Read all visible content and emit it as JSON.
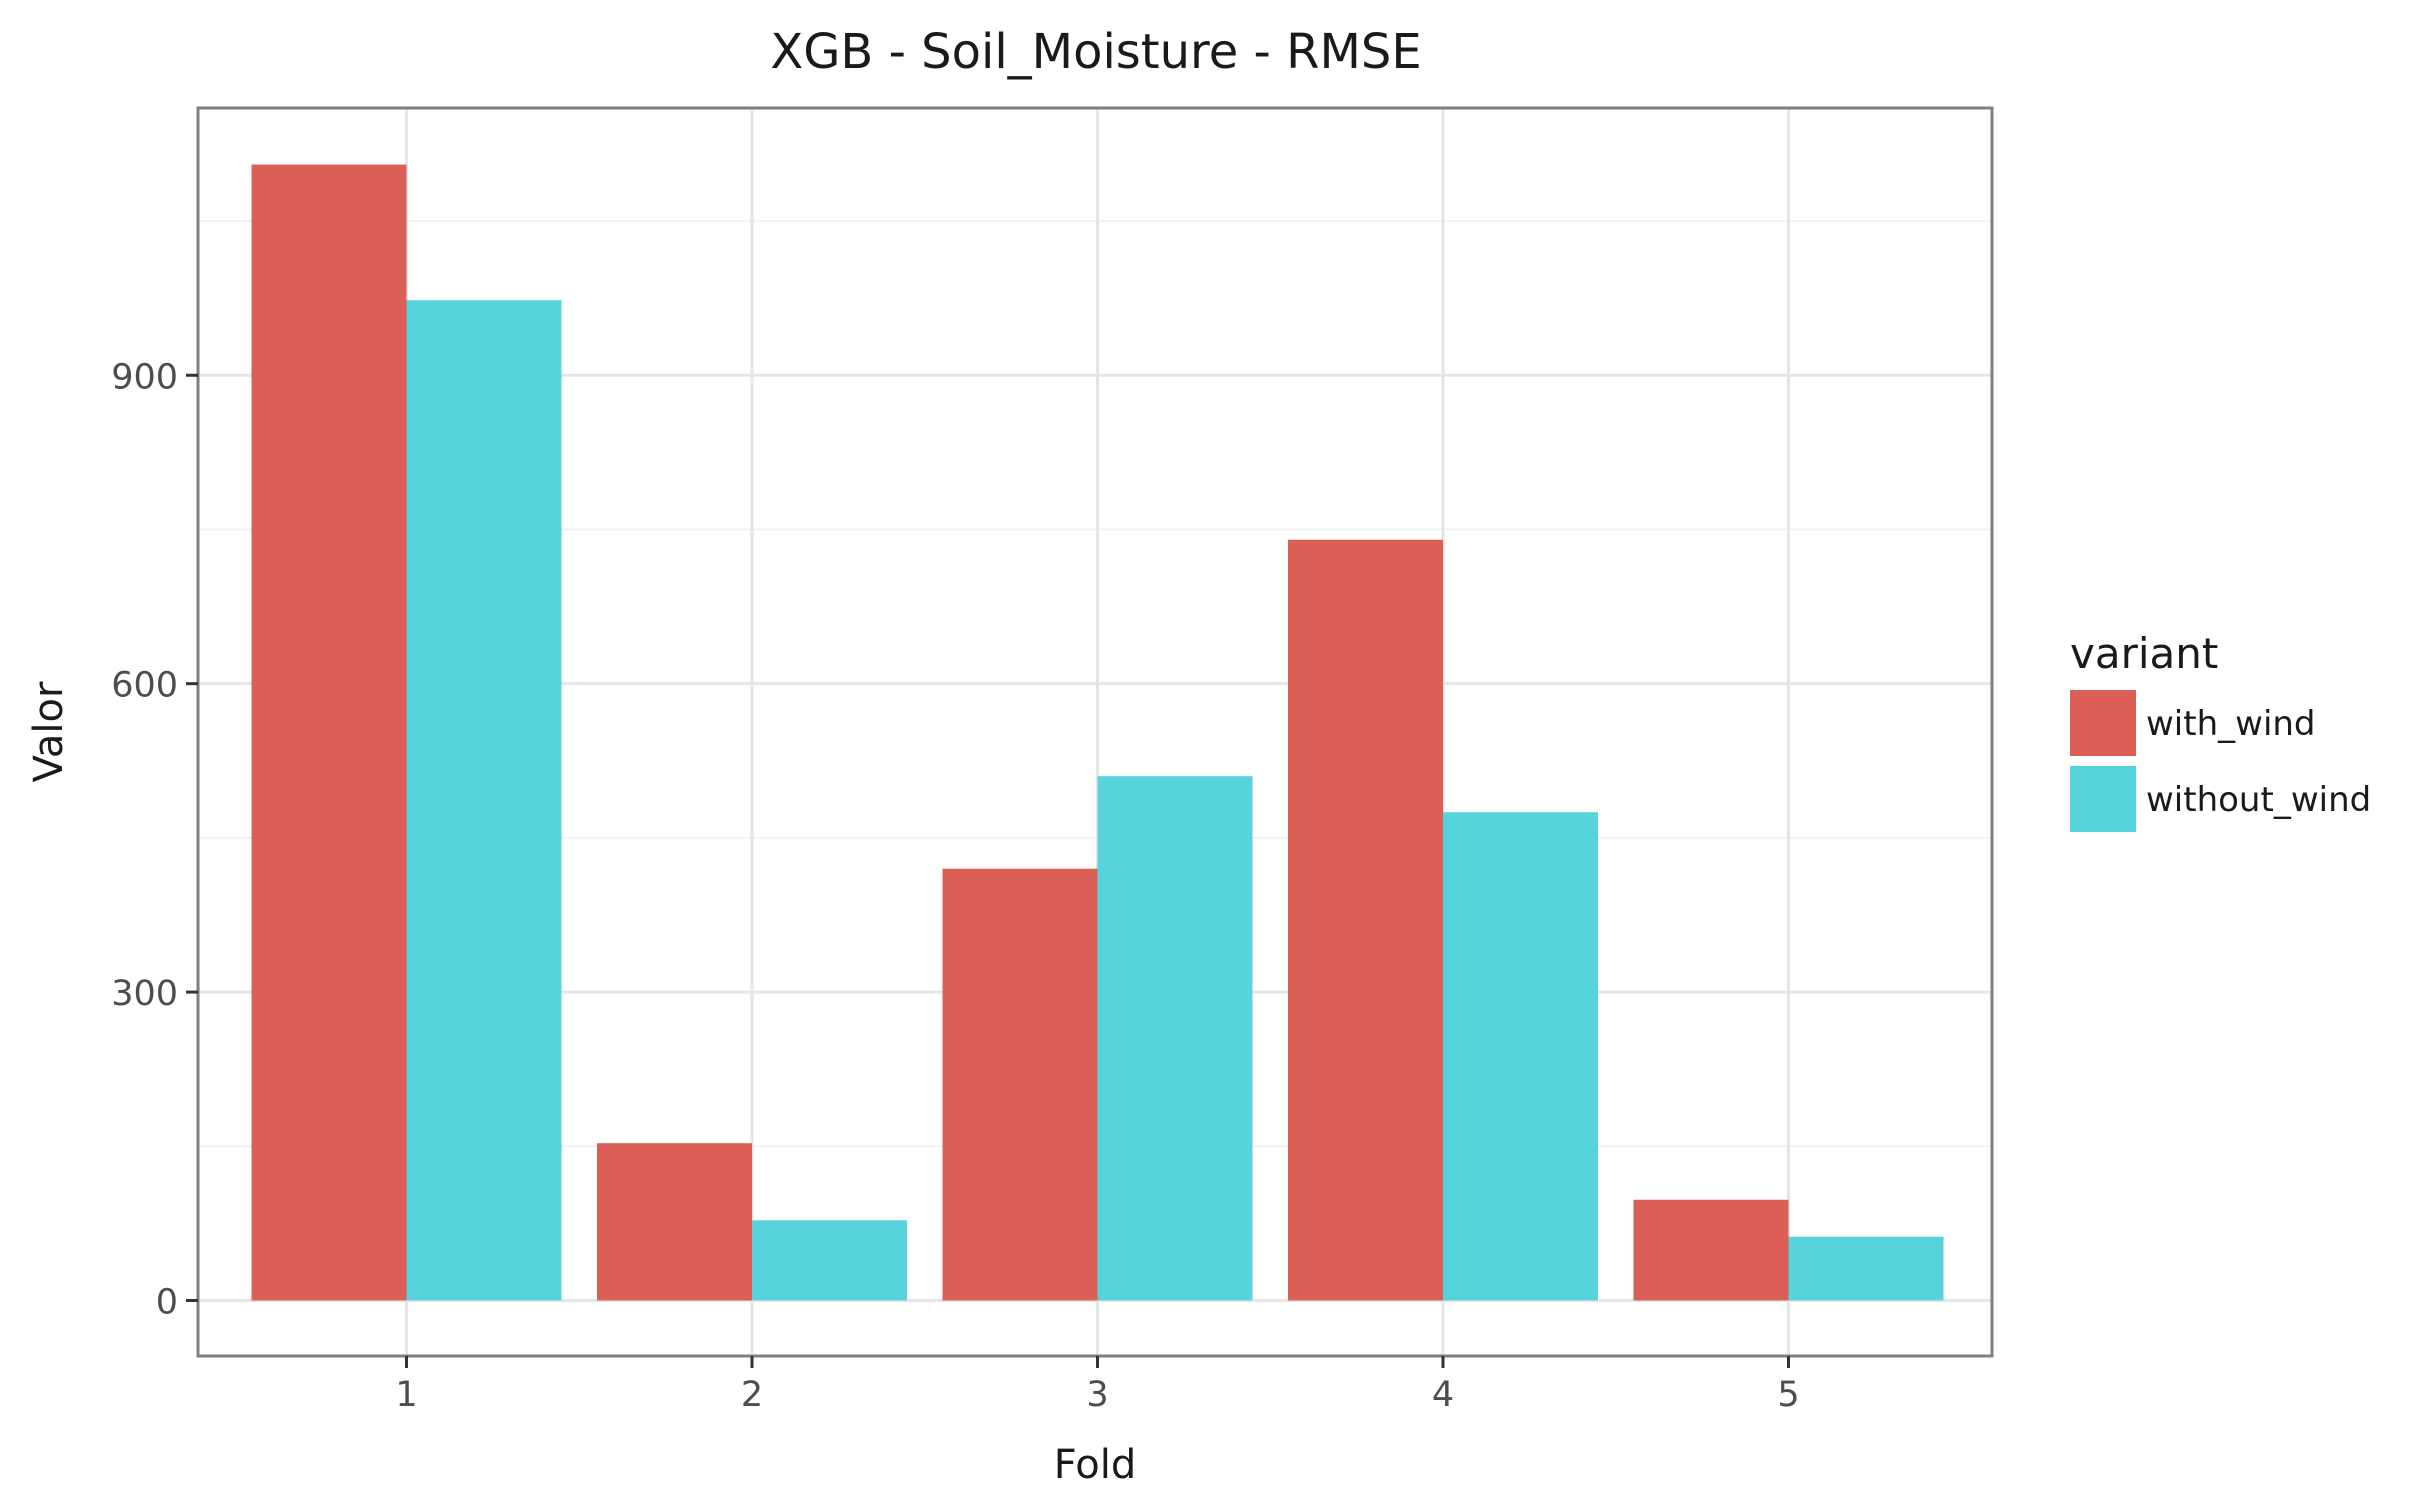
{
  "chart_data": {
    "type": "bar",
    "title": "XGB - Soil_Moisture - RMSE",
    "xlabel": "Fold",
    "ylabel": "Valor",
    "categories": [
      "1",
      "2",
      "3",
      "4",
      "5"
    ],
    "series": [
      {
        "name": "with_wind",
        "color": "#db5f57",
        "values": [
          1105,
          153,
          420,
          740,
          98
        ]
      },
      {
        "name": "without_wind",
        "color": "#57d3db",
        "values": [
          973,
          78,
          510,
          475,
          62
        ]
      }
    ],
    "yticks": [
      0,
      300,
      600,
      900
    ],
    "ytick_labels": [
      "0",
      "300",
      "600",
      "900"
    ],
    "ylim": [
      -54,
      1160
    ],
    "grid": true,
    "legend": {
      "title": "variant",
      "position": "right"
    }
  }
}
